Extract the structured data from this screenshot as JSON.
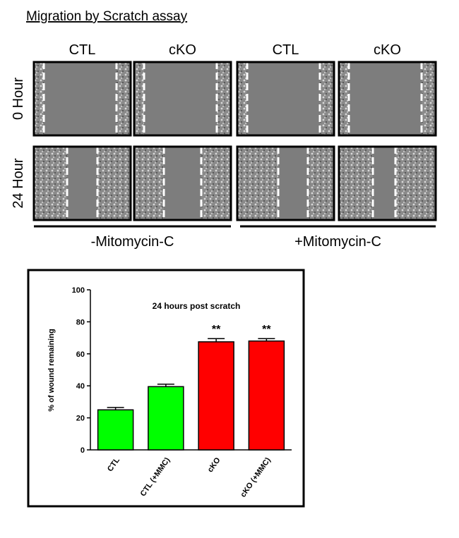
{
  "figure": {
    "title": "Migration by Scratch assay",
    "columns": [
      "CTL",
      "cKO",
      "CTL",
      "cKO"
    ],
    "rows": [
      "0 Hour",
      "24 Hour"
    ],
    "groups": [
      "-Mitomycin-C",
      "+Mitomycin-C"
    ]
  },
  "chart_data": {
    "type": "bar",
    "title": "24 hours post scratch",
    "y_label": "% of wound remaining",
    "categories": [
      "CTL",
      "CTL (+MMC)",
      "cKO",
      "cKO (+MMC)"
    ],
    "values": [
      25,
      39.5,
      67.5,
      68
    ],
    "errors": [
      1.5,
      1.5,
      2,
      1.5
    ],
    "colors": [
      "#00ff00",
      "#00ff00",
      "#ff0000",
      "#ff0000"
    ],
    "significance": [
      null,
      null,
      "**",
      "**"
    ],
    "ylim": [
      0,
      100
    ],
    "yticks": [
      0,
      20,
      40,
      60,
      80,
      100
    ]
  }
}
